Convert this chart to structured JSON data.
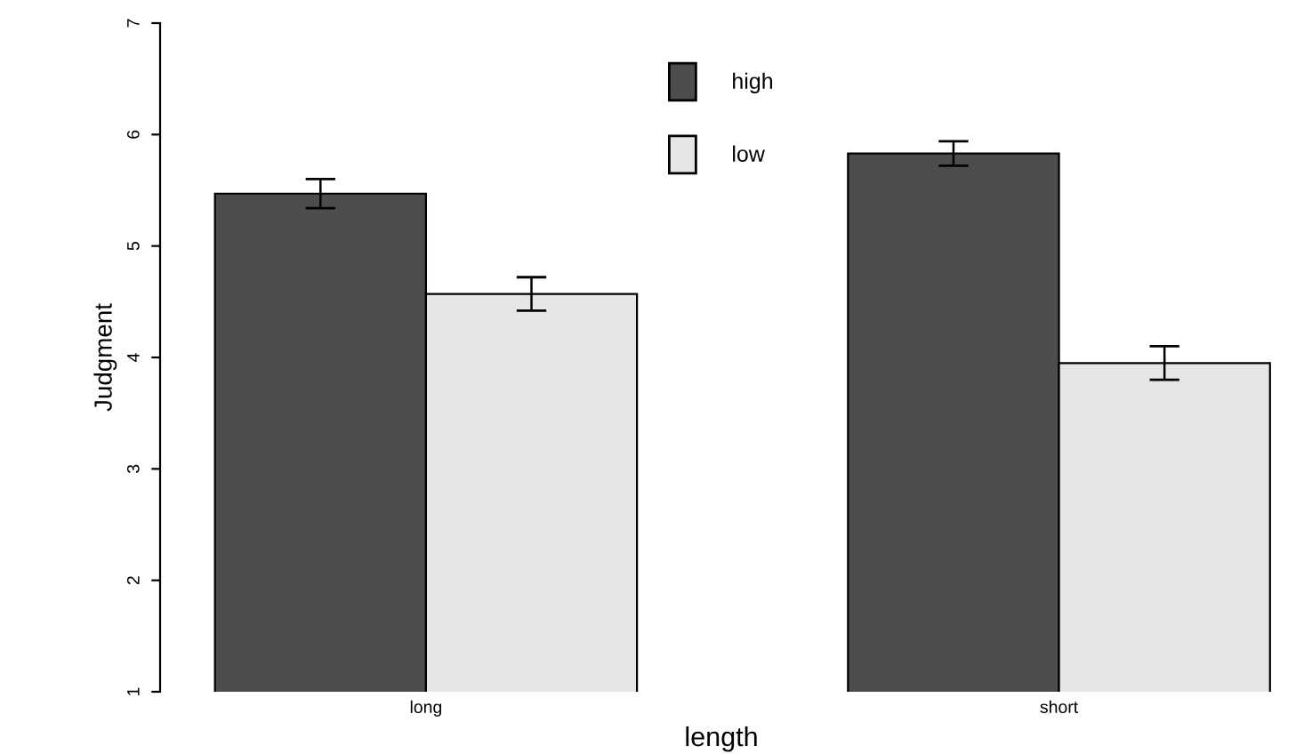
{
  "chart_data": {
    "type": "bar",
    "xlabel": "length",
    "ylabel": "Judgment",
    "categories": [
      "long",
      "short"
    ],
    "series": [
      {
        "name": "high",
        "color": "#4d4d4d",
        "values": [
          5.47,
          5.83
        ],
        "errors": [
          0.13,
          0.11
        ]
      },
      {
        "name": "low",
        "color": "#e6e6e6",
        "values": [
          4.57,
          3.95
        ],
        "errors": [
          0.15,
          0.15
        ]
      }
    ],
    "ylim": [
      1,
      7
    ],
    "yticks": [
      1,
      2,
      3,
      4,
      5,
      6,
      7
    ],
    "grid": false,
    "legend": "top"
  }
}
